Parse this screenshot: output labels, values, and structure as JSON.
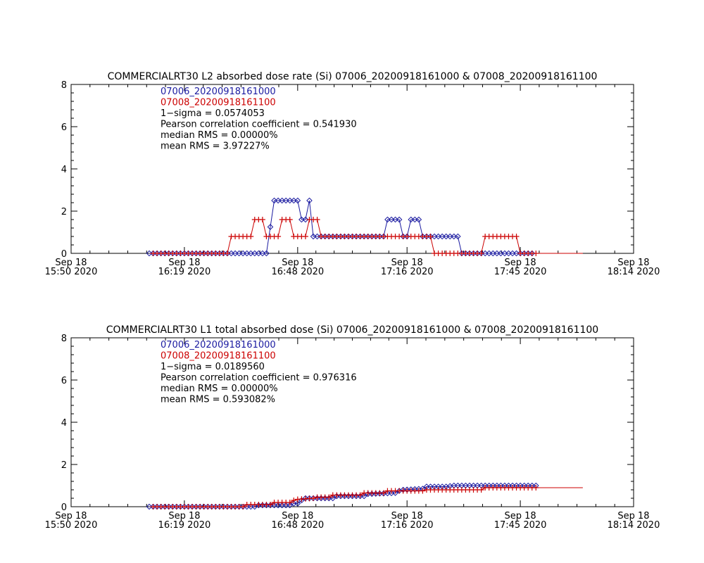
{
  "chart_data": [
    {
      "type": "line",
      "title": "COMMERCIALRT30 L2 absorbed dose rate (Si) 07006_20200918161000 & 07008_20200918161100",
      "xlabel": "",
      "ylabel": "",
      "x_domain": [
        0,
        144
      ],
      "ylim": [
        0,
        8
      ],
      "yticks": [
        "0",
        "2",
        "4",
        "6",
        "8"
      ],
      "xticks": [
        {
          "x": 0,
          "line1": "Sep 18",
          "line2": "15:50 2020"
        },
        {
          "x": 29,
          "line1": "Sep 18",
          "line2": "16:19 2020"
        },
        {
          "x": 58,
          "line1": "Sep 18",
          "line2": "16:48 2020"
        },
        {
          "x": 86,
          "line1": "Sep 18",
          "line2": "17:16 2020"
        },
        {
          "x": 115,
          "line1": "Sep 18",
          "line2": "17:45 2020"
        },
        {
          "x": 144,
          "line1": "Sep 18",
          "line2": "18:14 2020"
        }
      ],
      "annotations": [
        {
          "text": "07006_20200918161000",
          "color": "#1a1aa0"
        },
        {
          "text": "07008_20200918161100",
          "color": "#cc0000"
        },
        {
          "text": "1−sigma = 0.0574053",
          "color": "#000000"
        },
        {
          "text": "Pearson correlation coefficient = 0.541930",
          "color": "#000000"
        },
        {
          "text": "median RMS = 0.00000%",
          "color": "#000000"
        },
        {
          "text": "mean RMS = 3.97227%",
          "color": "#000000"
        }
      ],
      "series": [
        {
          "name": "07006_20200918161000",
          "color": "#1a1aa0",
          "marker": "diamond",
          "points": [
            [
              20,
              0
            ],
            [
              50,
              0
            ],
            [
              52,
              2.5
            ],
            [
              58,
              2.5
            ],
            [
              59,
              1.6
            ],
            [
              60,
              1.6
            ],
            [
              61,
              2.5
            ],
            [
              62,
              0.8
            ],
            [
              80,
              0.8
            ],
            [
              81,
              1.6
            ],
            [
              84,
              1.6
            ],
            [
              85,
              0.8
            ],
            [
              86,
              0.8
            ],
            [
              87,
              1.6
            ],
            [
              89,
              1.6
            ],
            [
              90,
              0.8
            ],
            [
              99,
              0.8
            ],
            [
              100,
              0
            ],
            [
              118,
              0
            ]
          ],
          "marker_x_range": [
            20,
            118
          ],
          "marker_step": 1
        },
        {
          "name": "07008_20200918161100",
          "color": "#cc0000",
          "marker": "plus",
          "points": [
            [
              21,
              0
            ],
            [
              40,
              0
            ],
            [
              41,
              0.8
            ],
            [
              46,
              0.8
            ],
            [
              47,
              1.6
            ],
            [
              49,
              1.6
            ],
            [
              50,
              0.8
            ],
            [
              53,
              0.8
            ],
            [
              54,
              1.6
            ],
            [
              56,
              1.6
            ],
            [
              57,
              0.8
            ],
            [
              60,
              0.8
            ],
            [
              61,
              1.6
            ],
            [
              63,
              1.6
            ],
            [
              64,
              0.8
            ],
            [
              92,
              0.8
            ],
            [
              93,
              0
            ],
            [
              105,
              0
            ],
            [
              106,
              0.8
            ],
            [
              114,
              0.8
            ],
            [
              115,
              0
            ],
            [
              131,
              0
            ]
          ],
          "marker_x_range": [
            21,
            119
          ],
          "marker_step": 1
        }
      ]
    },
    {
      "type": "line",
      "title": "COMMERCIALRT30 L1 total absorbed dose (Si) 07006_20200918161000 & 07008_20200918161100",
      "xlabel": "",
      "ylabel": "",
      "x_domain": [
        0,
        144
      ],
      "ylim": [
        0,
        8
      ],
      "yticks": [
        "0",
        "2",
        "4",
        "6",
        "8"
      ],
      "xticks": [
        {
          "x": 0,
          "line1": "Sep 18",
          "line2": "15:50 2020"
        },
        {
          "x": 29,
          "line1": "Sep 18",
          "line2": "16:19 2020"
        },
        {
          "x": 58,
          "line1": "Sep 18",
          "line2": "16:48 2020"
        },
        {
          "x": 86,
          "line1": "Sep 18",
          "line2": "17:16 2020"
        },
        {
          "x": 115,
          "line1": "Sep 18",
          "line2": "17:45 2020"
        },
        {
          "x": 144,
          "line1": "Sep 18",
          "line2": "18:14 2020"
        }
      ],
      "annotations": [
        {
          "text": "07006_20200918161000",
          "color": "#1a1aa0"
        },
        {
          "text": "07008_20200918161100",
          "color": "#cc0000"
        },
        {
          "text": "1−sigma = 0.0189560",
          "color": "#000000"
        },
        {
          "text": "Pearson correlation coefficient = 0.976316",
          "color": "#000000"
        },
        {
          "text": "median RMS = 0.00000%",
          "color": "#000000"
        },
        {
          "text": "mean RMS = 0.593082%",
          "color": "#000000"
        }
      ],
      "series": [
        {
          "name": "07006_20200918161000",
          "color": "#1a1aa0",
          "marker": "diamond",
          "points": [
            [
              20,
              0
            ],
            [
              47,
              0
            ],
            [
              48,
              0.07
            ],
            [
              56,
              0.07
            ],
            [
              57,
              0.15
            ],
            [
              58,
              0.15
            ],
            [
              59,
              0.3
            ],
            [
              60,
              0.4
            ],
            [
              67,
              0.4
            ],
            [
              68,
              0.5
            ],
            [
              75,
              0.5
            ],
            [
              76,
              0.6
            ],
            [
              83,
              0.65
            ],
            [
              84,
              0.75
            ],
            [
              85,
              0.8
            ],
            [
              90,
              0.85
            ],
            [
              91,
              0.95
            ],
            [
              96,
              0.95
            ],
            [
              98,
              1.0
            ],
            [
              119,
              1.0
            ]
          ],
          "marker_x_range": [
            20,
            119
          ],
          "marker_step": 1
        },
        {
          "name": "07008_20200918161100",
          "color": "#cc0000",
          "marker": "plus",
          "points": [
            [
              21,
              0
            ],
            [
              44,
              0
            ],
            [
              45,
              0.1
            ],
            [
              51,
              0.1
            ],
            [
              52,
              0.2
            ],
            [
              56,
              0.2
            ],
            [
              57,
              0.3
            ],
            [
              58,
              0.35
            ],
            [
              62,
              0.4
            ],
            [
              63,
              0.45
            ],
            [
              66,
              0.45
            ],
            [
              67,
              0.55
            ],
            [
              74,
              0.55
            ],
            [
              75,
              0.65
            ],
            [
              80,
              0.65
            ],
            [
              81,
              0.75
            ],
            [
              90,
              0.75
            ],
            [
              91,
              0.8
            ],
            [
              105,
              0.8
            ],
            [
              106,
              0.9
            ],
            [
              131,
              0.9
            ]
          ],
          "marker_x_range": [
            21,
            119
          ],
          "marker_step": 1
        }
      ]
    }
  ]
}
